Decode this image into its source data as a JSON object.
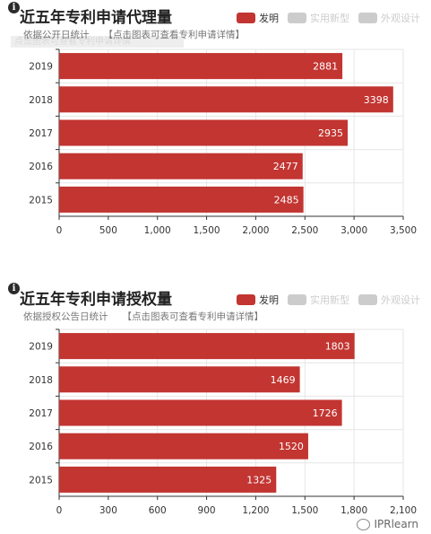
{
  "legend": {
    "items": [
      {
        "label": "发明",
        "color": "#c23531"
      },
      {
        "label": "实用新型",
        "color": "#cccccc"
      },
      {
        "label": "外观设计",
        "color": "#cccccc"
      }
    ]
  },
  "chart_data": [
    {
      "type": "bar",
      "orientation": "horizontal",
      "title": "近五年专利申请代理量",
      "subtitle": "依据公开日统计",
      "link_text": "【点击图表可查看专利申请详情】",
      "ghost_text": "点击图表可查看专利申请详情",
      "categories": [
        "2019",
        "2018",
        "2017",
        "2016",
        "2015"
      ],
      "series": [
        {
          "name": "发明",
          "values": [
            2881,
            3398,
            2935,
            2477,
            2485
          ]
        }
      ],
      "xlim": [
        0,
        3500
      ],
      "xticks": [
        "0",
        "500",
        "1,000",
        "1,500",
        "2,000",
        "2,500",
        "3,000",
        "3,500"
      ],
      "grid": true,
      "color": "#c23531"
    },
    {
      "type": "bar",
      "orientation": "horizontal",
      "title": "近五年专利申请授权量",
      "subtitle": "依据授权公告日统计",
      "link_text": "【点击图表可查看专利申请详情】",
      "categories": [
        "2019",
        "2018",
        "2017",
        "2016",
        "2015"
      ],
      "series": [
        {
          "name": "发明",
          "values": [
            1803,
            1469,
            1726,
            1520,
            1325
          ]
        }
      ],
      "xlim": [
        0,
        2100
      ],
      "xticks": [
        "0",
        "300",
        "600",
        "900",
        "1,200",
        "1,500",
        "1,800",
        "2,100"
      ],
      "grid": true,
      "color": "#c23531"
    }
  ],
  "watermark": {
    "text": "IPRlearn"
  }
}
